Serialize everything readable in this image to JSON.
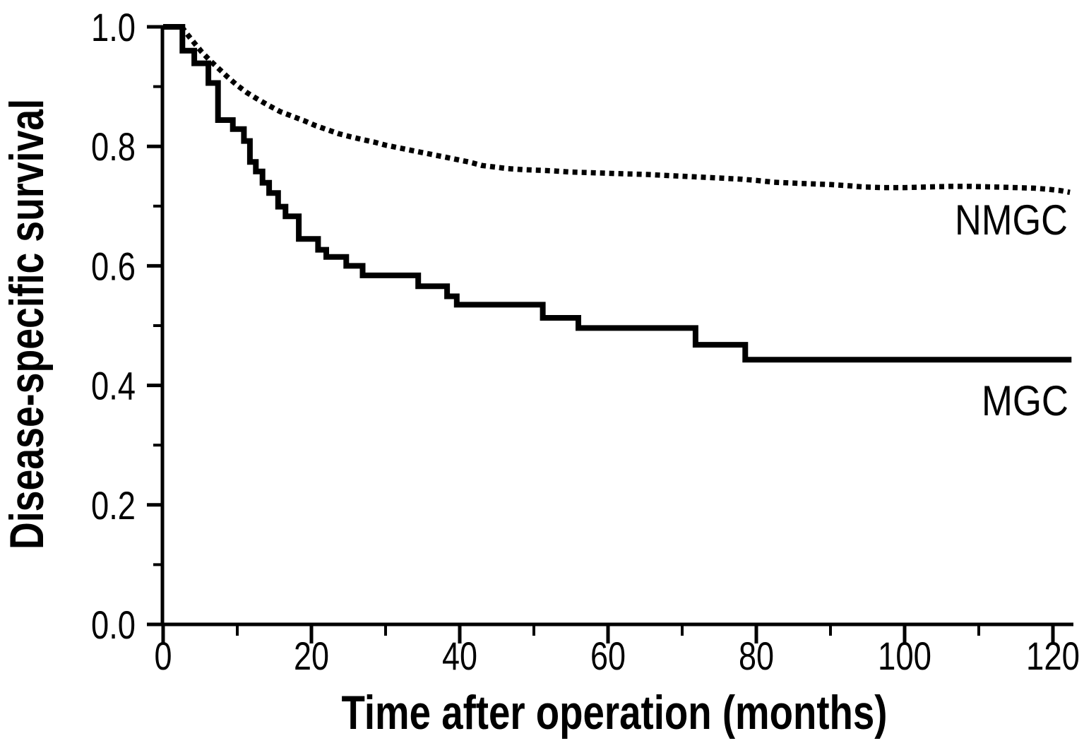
{
  "figure": {
    "background_color": "#ffffff",
    "ink_color": "#000000"
  },
  "chart_data": {
    "type": "line",
    "subtype": "kaplan-meier-survival-step-plot",
    "title": "",
    "xlabel": "Time after operation (months)",
    "ylabel": "Disease-specific survival",
    "xlim": [
      0,
      124
    ],
    "ylim": [
      0.0,
      1.0
    ],
    "grid": false,
    "legend_position": "inline-labels-at-curve-ends",
    "x_axis": {
      "major_tick_values": [
        0,
        20,
        40,
        60,
        80,
        100,
        120
      ],
      "major_tick_labels": [
        "0",
        "20",
        "40",
        "60",
        "80",
        "100",
        "120"
      ],
      "minor_tick_values": [
        10,
        30,
        50,
        70,
        90,
        110
      ]
    },
    "y_axis": {
      "major_tick_values": [
        0.0,
        0.2,
        0.4,
        0.6,
        0.8,
        1.0
      ],
      "major_tick_labels": [
        "0.0",
        "0.2",
        "0.4",
        "0.6",
        "0.8",
        "1.0"
      ],
      "minor_tick_values": [
        0.1,
        0.3,
        0.5,
        0.7,
        0.9
      ]
    },
    "series": [
      {
        "name": "NMGC",
        "label": "NMGC",
        "line_style": "dotted",
        "color": "#000000",
        "points": [
          [
            2.5,
            1.0
          ],
          [
            3.3,
            0.987
          ],
          [
            4.2,
            0.973
          ],
          [
            5.2,
            0.958
          ],
          [
            6.3,
            0.944
          ],
          [
            7.5,
            0.93
          ],
          [
            8.7,
            0.916
          ],
          [
            10.0,
            0.902
          ],
          [
            11.3,
            0.89
          ],
          [
            12.6,
            0.88
          ],
          [
            14.0,
            0.87
          ],
          [
            15.8,
            0.858
          ],
          [
            17.5,
            0.85
          ],
          [
            19.0,
            0.843
          ],
          [
            20.5,
            0.835
          ],
          [
            22.1,
            0.828
          ],
          [
            23.7,
            0.821
          ],
          [
            25.3,
            0.816
          ],
          [
            27.0,
            0.811
          ],
          [
            28.5,
            0.807
          ],
          [
            30.0,
            0.802
          ],
          [
            31.6,
            0.798
          ],
          [
            33.2,
            0.794
          ],
          [
            34.8,
            0.79
          ],
          [
            36.4,
            0.786
          ],
          [
            38.0,
            0.782
          ],
          [
            39.6,
            0.778
          ],
          [
            41.2,
            0.774
          ],
          [
            43.0,
            0.768
          ],
          [
            45.0,
            0.765
          ],
          [
            46.3,
            0.763
          ],
          [
            48.5,
            0.761
          ],
          [
            50.5,
            0.76
          ],
          [
            52.6,
            0.759
          ],
          [
            55.0,
            0.757
          ],
          [
            57.5,
            0.756
          ],
          [
            60.0,
            0.755
          ],
          [
            62.2,
            0.754
          ],
          [
            65.3,
            0.753
          ],
          [
            68.4,
            0.751
          ],
          [
            71.6,
            0.749
          ],
          [
            75.0,
            0.747
          ],
          [
            78.0,
            0.745
          ],
          [
            80.0,
            0.743
          ],
          [
            82.4,
            0.74
          ],
          [
            86.0,
            0.738
          ],
          [
            90.0,
            0.736
          ],
          [
            92.5,
            0.734
          ],
          [
            94.5,
            0.732
          ],
          [
            97.0,
            0.731
          ],
          [
            100.0,
            0.731
          ],
          [
            103.0,
            0.732
          ],
          [
            106.0,
            0.733
          ],
          [
            109.0,
            0.733
          ],
          [
            112.0,
            0.732
          ],
          [
            115.0,
            0.731
          ],
          [
            117.5,
            0.73
          ],
          [
            119.5,
            0.728
          ],
          [
            121.0,
            0.726
          ],
          [
            122.3,
            0.723
          ]
        ]
      },
      {
        "name": "MGC",
        "label": "MGC",
        "line_style": "solid",
        "color": "#000000",
        "points": [
          [
            0,
            1.0
          ],
          [
            2.6,
            1.0
          ],
          [
            2.6,
            0.96
          ],
          [
            4.2,
            0.96
          ],
          [
            4.2,
            0.939
          ],
          [
            6.1,
            0.939
          ],
          [
            6.1,
            0.906
          ],
          [
            7.4,
            0.906
          ],
          [
            7.4,
            0.844
          ],
          [
            9.4,
            0.844
          ],
          [
            9.4,
            0.829
          ],
          [
            10.9,
            0.829
          ],
          [
            10.9,
            0.809
          ],
          [
            11.7,
            0.809
          ],
          [
            11.7,
            0.774
          ],
          [
            12.5,
            0.774
          ],
          [
            12.5,
            0.758
          ],
          [
            13.4,
            0.758
          ],
          [
            13.4,
            0.739
          ],
          [
            14.3,
            0.739
          ],
          [
            14.3,
            0.722
          ],
          [
            15.5,
            0.722
          ],
          [
            15.5,
            0.699
          ],
          [
            16.5,
            0.699
          ],
          [
            16.5,
            0.683
          ],
          [
            18.3,
            0.683
          ],
          [
            18.3,
            0.645
          ],
          [
            20.9,
            0.645
          ],
          [
            20.9,
            0.627
          ],
          [
            22.0,
            0.627
          ],
          [
            22.0,
            0.615
          ],
          [
            24.7,
            0.615
          ],
          [
            24.7,
            0.6
          ],
          [
            26.9,
            0.6
          ],
          [
            26.9,
            0.584
          ],
          [
            34.4,
            0.584
          ],
          [
            34.4,
            0.566
          ],
          [
            38.3,
            0.566
          ],
          [
            38.3,
            0.549
          ],
          [
            39.6,
            0.549
          ],
          [
            39.6,
            0.535
          ],
          [
            51.2,
            0.535
          ],
          [
            51.2,
            0.513
          ],
          [
            56.0,
            0.513
          ],
          [
            56.0,
            0.496
          ],
          [
            71.8,
            0.496
          ],
          [
            71.8,
            0.468
          ],
          [
            78.5,
            0.468
          ],
          [
            78.5,
            0.443
          ],
          [
            122.5,
            0.443
          ]
        ]
      }
    ]
  }
}
